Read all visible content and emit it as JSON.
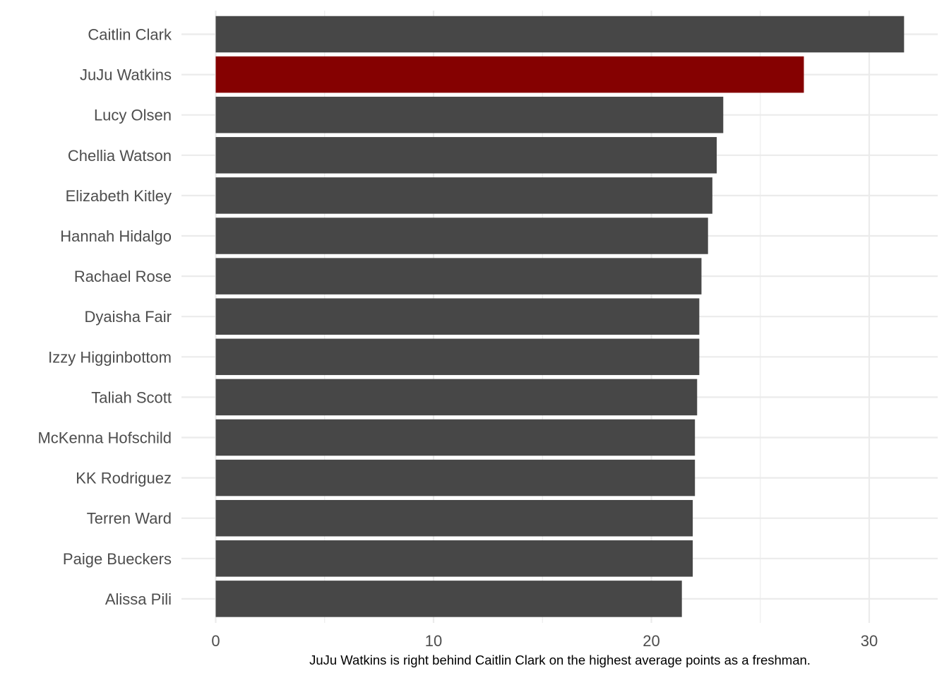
{
  "chart_data": {
    "type": "bar",
    "orientation": "horizontal",
    "title": "",
    "xlabel": "",
    "ylabel": "",
    "caption": "JuJu Watkins is right behind Caitlin Clark on the highest average points as a freshman.",
    "categories": [
      "Caitlin Clark",
      "JuJu Watkins",
      "Lucy Olsen",
      "Chellia Watson",
      "Elizabeth Kitley",
      "Hannah Hidalgo",
      "Rachael Rose",
      "Dyaisha Fair",
      "Izzy Higginbottom",
      "Taliah Scott",
      "McKenna Hofschild",
      "KK Rodriguez",
      "Terren Ward",
      "Paige Bueckers",
      "Alissa Pili"
    ],
    "values": [
      31.6,
      27.0,
      23.3,
      23.0,
      22.8,
      22.6,
      22.3,
      22.2,
      22.2,
      22.1,
      22.0,
      22.0,
      21.9,
      21.9,
      21.4
    ],
    "highlight": "JuJu Watkins",
    "xlim": [
      0,
      33.1
    ],
    "xticks": [
      0,
      10,
      20,
      30
    ],
    "grid": true,
    "legend": "none",
    "colors": {
      "default_bar": "#474747",
      "highlight_bar": "#850101",
      "grid": "#ebebeb",
      "tick_text": "#4d4d4d",
      "caption_text": "#000000",
      "background": "#ffffff"
    }
  }
}
